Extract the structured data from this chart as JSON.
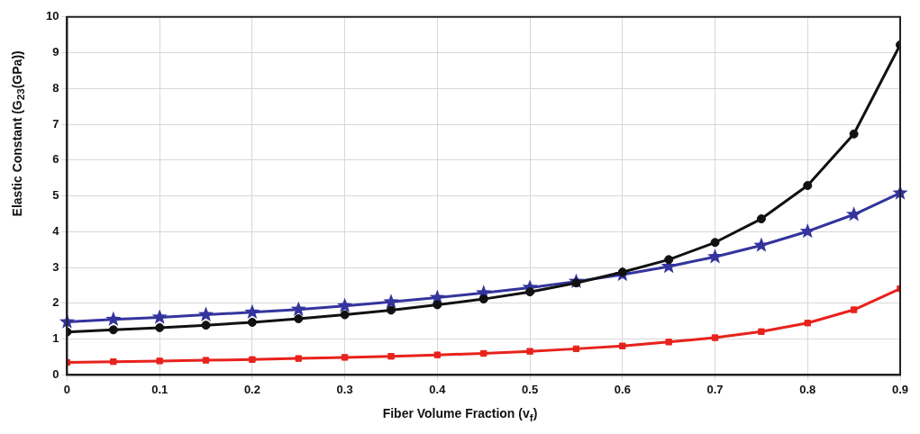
{
  "chart_data": {
    "type": "line",
    "xlabel": "Fiber Volume Fraction (v$_{f}$)",
    "ylabel": "Elastic Constant (G$_{23}$(GPa))",
    "x": [
      0,
      0.05,
      0.1,
      0.15,
      0.2,
      0.25,
      0.3,
      0.35,
      0.4,
      0.45,
      0.5,
      0.55,
      0.6,
      0.65,
      0.7,
      0.75,
      0.8,
      0.85,
      0.9
    ],
    "xlim": [
      0,
      0.9
    ],
    "xticks": [
      0,
      0.1,
      0.2,
      0.3,
      0.4,
      0.5,
      0.6,
      0.7,
      0.8,
      0.9
    ],
    "ylim": [
      0,
      10
    ],
    "yticks": [
      0,
      1,
      2,
      3,
      4,
      5,
      6,
      7,
      8,
      9,
      10
    ],
    "grid": true,
    "legend": false,
    "series": [
      {
        "color": "#34349e",
        "marker": "star",
        "values": [
          1.48,
          1.55,
          1.61,
          1.68,
          1.75,
          1.83,
          1.93,
          2.04,
          2.16,
          2.29,
          2.44,
          2.61,
          2.8,
          3.03,
          3.3,
          3.62,
          4.01,
          4.48,
          5.08
        ]
      },
      {
        "color": "#e8221c",
        "marker": "square",
        "values": [
          0.35,
          0.37,
          0.39,
          0.41,
          0.43,
          0.46,
          0.49,
          0.52,
          0.56,
          0.6,
          0.66,
          0.73,
          0.81,
          0.92,
          1.04,
          1.21,
          1.45,
          1.82,
          2.41
        ]
      },
      {
        "color": "#111111",
        "marker": "circle",
        "values": [
          1.2,
          1.26,
          1.32,
          1.39,
          1.47,
          1.57,
          1.68,
          1.81,
          1.96,
          2.12,
          2.32,
          2.57,
          2.87,
          3.22,
          3.7,
          4.36,
          5.29,
          6.73,
          9.22
        ]
      }
    ]
  }
}
